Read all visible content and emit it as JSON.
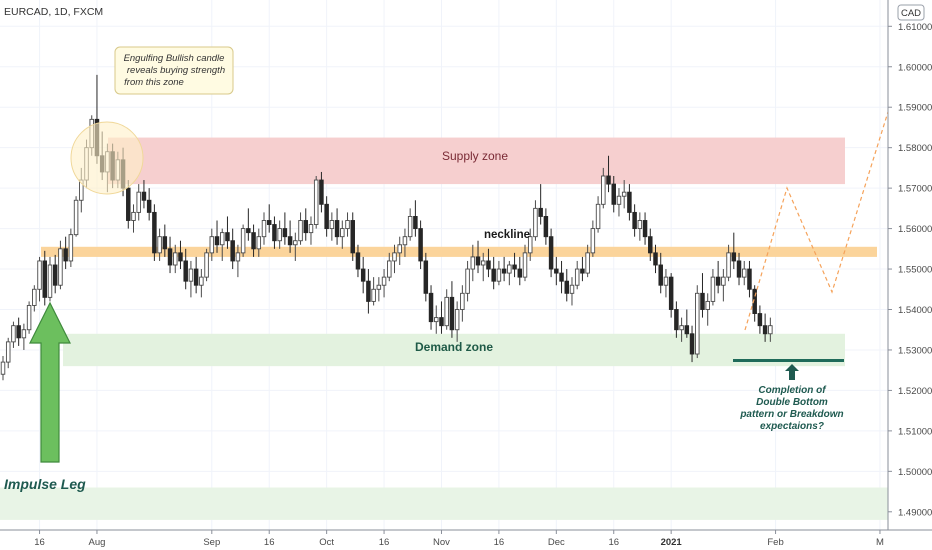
{
  "symbol_header": "EURCAD, 1D, FXCM",
  "currency_label": "CAD",
  "chart_data": {
    "type": "candlestick",
    "title": "EURCAD, 1D, FXCM",
    "ylim": [
      1.4855,
      1.6165
    ],
    "y_ticks": [
      "1.61000",
      "1.60000",
      "1.59000",
      "1.58000",
      "1.57000",
      "1.56000",
      "1.55000",
      "1.54000",
      "1.53000",
      "1.52000",
      "1.51000",
      "1.50000",
      "1.49000"
    ],
    "x_ticks": [
      {
        "label": "16",
        "index": 7,
        "bold": false
      },
      {
        "label": "Aug",
        "index": 18,
        "bold": false
      },
      {
        "label": "Sep",
        "index": 40,
        "bold": false
      },
      {
        "label": "16",
        "index": 51,
        "bold": false
      },
      {
        "label": "Oct",
        "index": 62,
        "bold": false
      },
      {
        "label": "16",
        "index": 73,
        "bold": false
      },
      {
        "label": "Nov",
        "index": 84,
        "bold": false
      },
      {
        "label": "16",
        "index": 95,
        "bold": false
      },
      {
        "label": "Dec",
        "index": 106,
        "bold": false
      },
      {
        "label": "16",
        "index": 117,
        "bold": false
      },
      {
        "label": "2021",
        "index": 128,
        "bold": true
      },
      {
        "label": "Feb",
        "index": 148,
        "bold": false
      },
      {
        "label": "M",
        "index": 168,
        "bold": false
      }
    ],
    "candles": [
      [
        1.524,
        1.5285,
        1.5225,
        1.527
      ],
      [
        1.527,
        1.533,
        1.5255,
        1.532
      ],
      [
        1.532,
        1.537,
        1.5305,
        1.536
      ],
      [
        1.536,
        1.538,
        1.531,
        1.533
      ],
      [
        1.533,
        1.5365,
        1.53,
        1.535
      ],
      [
        1.535,
        1.542,
        1.534,
        1.541
      ],
      [
        1.541,
        1.546,
        1.5395,
        1.545
      ],
      [
        1.545,
        1.553,
        1.542,
        1.552
      ],
      [
        1.552,
        1.5545,
        1.541,
        1.543
      ],
      [
        1.543,
        1.553,
        1.542,
        1.551
      ],
      [
        1.551,
        1.5535,
        1.544,
        1.546
      ],
      [
        1.546,
        1.557,
        1.545,
        1.555
      ],
      [
        1.555,
        1.558,
        1.55,
        1.552
      ],
      [
        1.552,
        1.56,
        1.5505,
        1.5585
      ],
      [
        1.5585,
        1.568,
        1.558,
        1.567
      ],
      [
        1.567,
        1.575,
        1.564,
        1.572
      ],
      [
        1.572,
        1.582,
        1.57,
        1.58
      ],
      [
        1.58,
        1.588,
        1.578,
        1.587
      ],
      [
        1.587,
        1.598,
        1.576,
        1.578
      ],
      [
        1.578,
        1.584,
        1.572,
        1.574
      ],
      [
        1.574,
        1.581,
        1.569,
        1.579
      ],
      [
        1.579,
        1.581,
        1.57,
        1.572
      ],
      [
        1.572,
        1.579,
        1.57,
        1.577
      ],
      [
        1.577,
        1.58,
        1.568,
        1.57
      ],
      [
        1.57,
        1.572,
        1.56,
        1.562
      ],
      [
        1.562,
        1.566,
        1.559,
        1.564
      ],
      [
        1.564,
        1.571,
        1.562,
        1.569
      ],
      [
        1.569,
        1.572,
        1.565,
        1.567
      ],
      [
        1.567,
        1.57,
        1.562,
        1.564
      ],
      [
        1.564,
        1.566,
        1.552,
        1.554
      ],
      [
        1.554,
        1.56,
        1.552,
        1.558
      ],
      [
        1.558,
        1.561,
        1.553,
        1.555
      ],
      [
        1.555,
        1.558,
        1.549,
        1.551
      ],
      [
        1.551,
        1.556,
        1.549,
        1.554
      ],
      [
        1.554,
        1.557,
        1.55,
        1.552
      ],
      [
        1.552,
        1.555,
        1.545,
        1.547
      ],
      [
        1.547,
        1.552,
        1.543,
        1.55
      ],
      [
        1.55,
        1.553,
        1.544,
        1.546
      ],
      [
        1.546,
        1.55,
        1.543,
        1.548
      ],
      [
        1.548,
        1.555,
        1.547,
        1.554
      ],
      [
        1.554,
        1.56,
        1.552,
        1.558
      ],
      [
        1.558,
        1.562,
        1.554,
        1.556
      ],
      [
        1.556,
        1.56,
        1.552,
        1.559
      ],
      [
        1.559,
        1.563,
        1.555,
        1.557
      ],
      [
        1.557,
        1.56,
        1.55,
        1.552
      ],
      [
        1.552,
        1.556,
        1.548,
        1.554
      ],
      [
        1.554,
        1.561,
        1.553,
        1.56
      ],
      [
        1.56,
        1.565,
        1.557,
        1.559
      ],
      [
        1.559,
        1.561,
        1.553,
        1.555
      ],
      [
        1.555,
        1.56,
        1.553,
        1.558
      ],
      [
        1.558,
        1.564,
        1.556,
        1.562
      ],
      [
        1.562,
        1.566,
        1.559,
        1.561
      ],
      [
        1.561,
        1.563,
        1.555,
        1.557
      ],
      [
        1.557,
        1.562,
        1.555,
        1.56
      ],
      [
        1.56,
        1.564,
        1.556,
        1.558
      ],
      [
        1.558,
        1.562,
        1.554,
        1.556
      ],
      [
        1.556,
        1.559,
        1.552,
        1.557
      ],
      [
        1.557,
        1.564,
        1.556,
        1.562
      ],
      [
        1.562,
        1.565,
        1.557,
        1.559
      ],
      [
        1.559,
        1.563,
        1.556,
        1.561
      ],
      [
        1.561,
        1.573,
        1.56,
        1.572
      ],
      [
        1.572,
        1.574,
        1.564,
        1.566
      ],
      [
        1.566,
        1.568,
        1.558,
        1.56
      ],
      [
        1.56,
        1.564,
        1.557,
        1.562
      ],
      [
        1.562,
        1.565,
        1.556,
        1.558
      ],
      [
        1.558,
        1.562,
        1.555,
        1.56
      ],
      [
        1.56,
        1.564,
        1.558,
        1.562
      ],
      [
        1.562,
        1.564,
        1.552,
        1.554
      ],
      [
        1.554,
        1.556,
        1.548,
        1.55
      ],
      [
        1.55,
        1.553,
        1.544,
        1.547
      ],
      [
        1.547,
        1.55,
        1.539,
        1.542
      ],
      [
        1.542,
        1.548,
        1.541,
        1.545
      ],
      [
        1.545,
        1.548,
        1.542,
        1.546
      ],
      [
        1.546,
        1.55,
        1.543,
        1.548
      ],
      [
        1.548,
        1.554,
        1.547,
        1.552
      ],
      [
        1.552,
        1.556,
        1.549,
        1.554
      ],
      [
        1.554,
        1.558,
        1.551,
        1.556
      ],
      [
        1.556,
        1.56,
        1.553,
        1.558
      ],
      [
        1.558,
        1.565,
        1.557,
        1.563
      ],
      [
        1.563,
        1.567,
        1.558,
        1.56
      ],
      [
        1.56,
        1.562,
        1.55,
        1.552
      ],
      [
        1.552,
        1.554,
        1.542,
        1.544
      ],
      [
        1.544,
        1.546,
        1.535,
        1.537
      ],
      [
        1.537,
        1.541,
        1.534,
        1.538
      ],
      [
        1.538,
        1.542,
        1.534,
        1.536
      ],
      [
        1.536,
        1.545,
        1.535,
        1.543
      ],
      [
        1.543,
        1.547,
        1.533,
        1.535
      ],
      [
        1.535,
        1.542,
        1.532,
        1.54
      ],
      [
        1.54,
        1.546,
        1.537,
        1.544
      ],
      [
        1.544,
        1.552,
        1.542,
        1.55
      ],
      [
        1.55,
        1.556,
        1.547,
        1.553
      ],
      [
        1.553,
        1.557,
        1.549,
        1.551
      ],
      [
        1.551,
        1.554,
        1.547,
        1.552
      ],
      [
        1.552,
        1.555,
        1.548,
        1.55
      ],
      [
        1.55,
        1.553,
        1.545,
        1.547
      ],
      [
        1.547,
        1.552,
        1.546,
        1.55
      ],
      [
        1.55,
        1.553,
        1.547,
        1.549
      ],
      [
        1.549,
        1.552,
        1.546,
        1.551
      ],
      [
        1.551,
        1.554,
        1.548,
        1.55
      ],
      [
        1.55,
        1.553,
        1.546,
        1.548
      ],
      [
        1.548,
        1.556,
        1.547,
        1.554
      ],
      [
        1.554,
        1.56,
        1.552,
        1.558
      ],
      [
        1.558,
        1.567,
        1.557,
        1.565
      ],
      [
        1.565,
        1.571,
        1.561,
        1.563
      ],
      [
        1.563,
        1.565,
        1.556,
        1.558
      ],
      [
        1.558,
        1.56,
        1.548,
        1.55
      ],
      [
        1.55,
        1.553,
        1.546,
        1.549
      ],
      [
        1.549,
        1.552,
        1.544,
        1.547
      ],
      [
        1.547,
        1.55,
        1.542,
        1.544
      ],
      [
        1.544,
        1.548,
        1.541,
        1.546
      ],
      [
        1.546,
        1.552,
        1.545,
        1.55
      ],
      [
        1.55,
        1.553,
        1.547,
        1.549
      ],
      [
        1.549,
        1.556,
        1.548,
        1.554
      ],
      [
        1.554,
        1.562,
        1.553,
        1.56
      ],
      [
        1.56,
        1.568,
        1.559,
        1.566
      ],
      [
        1.566,
        1.575,
        1.565,
        1.573
      ],
      [
        1.573,
        1.578,
        1.569,
        1.571
      ],
      [
        1.571,
        1.573,
        1.564,
        1.566
      ],
      [
        1.566,
        1.57,
        1.563,
        1.568
      ],
      [
        1.568,
        1.572,
        1.565,
        1.569
      ],
      [
        1.569,
        1.571,
        1.562,
        1.564
      ],
      [
        1.564,
        1.566,
        1.558,
        1.56
      ],
      [
        1.56,
        1.564,
        1.557,
        1.562
      ],
      [
        1.562,
        1.564,
        1.556,
        1.558
      ],
      [
        1.558,
        1.56,
        1.552,
        1.554
      ],
      [
        1.554,
        1.556,
        1.549,
        1.551
      ],
      [
        1.551,
        1.554,
        1.544,
        1.546
      ],
      [
        1.546,
        1.55,
        1.543,
        1.548
      ],
      [
        1.548,
        1.549,
        1.538,
        1.54
      ],
      [
        1.54,
        1.542,
        1.533,
        1.535
      ],
      [
        1.535,
        1.538,
        1.532,
        1.536
      ],
      [
        1.536,
        1.54,
        1.533,
        1.534
      ],
      [
        1.534,
        1.536,
        1.527,
        1.529
      ],
      [
        1.529,
        1.546,
        1.528,
        1.544
      ],
      [
        1.544,
        1.549,
        1.538,
        1.54
      ],
      [
        1.54,
        1.544,
        1.536,
        1.542
      ],
      [
        1.542,
        1.55,
        1.541,
        1.548
      ],
      [
        1.548,
        1.552,
        1.544,
        1.546
      ],
      [
        1.546,
        1.55,
        1.542,
        1.548
      ],
      [
        1.548,
        1.556,
        1.547,
        1.554
      ],
      [
        1.554,
        1.559,
        1.55,
        1.552
      ],
      [
        1.552,
        1.554,
        1.546,
        1.548
      ],
      [
        1.548,
        1.552,
        1.546,
        1.55
      ],
      [
        1.55,
        1.552,
        1.543,
        1.545
      ],
      [
        1.545,
        1.546,
        1.537,
        1.539
      ],
      [
        1.539,
        1.541,
        1.534,
        1.536
      ],
      [
        1.536,
        1.539,
        1.532,
        1.534
      ],
      [
        1.534,
        1.538,
        1.532,
        1.536
      ]
    ],
    "colors": {
      "up": "#4a4a4a",
      "down": "#262626",
      "grid": "#f0f3fa",
      "axis": "#8a8f9a"
    }
  },
  "zones": {
    "supply": {
      "label": "Supply zone",
      "y_top": 1.5825,
      "y_bottom": 1.571,
      "color": "#f6cfcf",
      "text_color": "#7a2a35"
    },
    "neckline": {
      "label": "neckline",
      "y_top": 1.5555,
      "y_bottom": 1.553,
      "color": "#fbd49b"
    },
    "demand": {
      "label": "Demand zone",
      "y_top": 1.534,
      "y_bottom": 1.526,
      "color": "#e3f2df",
      "text_color": "#1f5a47"
    },
    "lower": {
      "y_top": 1.496,
      "y_bottom": 1.488,
      "color": "#e8f4e6"
    }
  },
  "annotations": {
    "callout": [
      "Engulfing Bullish candle",
      "reveals buying strength",
      "from this zone"
    ],
    "impulse": "Impulse Leg",
    "completion": [
      "Completion of",
      "Double Bottom",
      "pattern or Breakdown",
      "expectaions?"
    ]
  }
}
